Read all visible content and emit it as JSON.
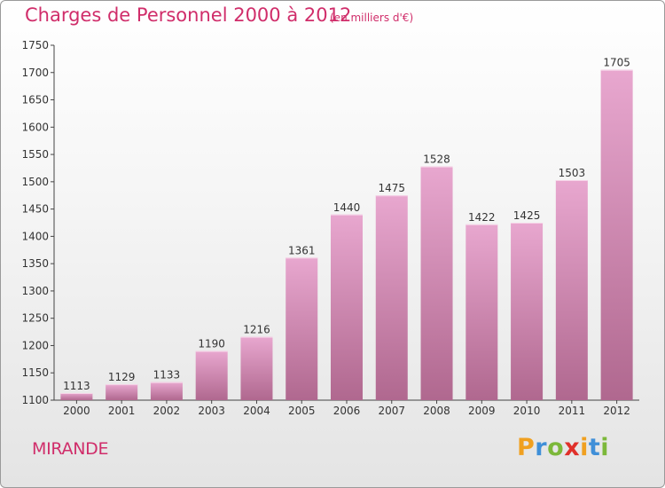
{
  "title": "Charges de Personnel 2000 à 2012",
  "subtitle": "(en milliers d'€)",
  "commune": "MIRANDE",
  "logo": {
    "letters": [
      "P",
      "r",
      "o",
      "x",
      "i",
      "t",
      "i"
    ],
    "colors": [
      "#f0a020",
      "#3f8fd8",
      "#7cb83a",
      "#e0302a",
      "#f0a020",
      "#3f8fd8",
      "#7cb83a"
    ]
  },
  "colors": {
    "accent": "#d02d6a",
    "bar_top": "#e8a7cf",
    "bar_bottom": "#b0688f",
    "bar_edge": "#f6d4e8"
  },
  "chart_data": {
    "type": "bar",
    "title": "Charges de Personnel 2000 à 2012",
    "subtitle": "(en milliers d'€)",
    "categories": [
      "2000",
      "2001",
      "2002",
      "2003",
      "2004",
      "2005",
      "2006",
      "2007",
      "2008",
      "2009",
      "2010",
      "2011",
      "2012"
    ],
    "values": [
      1113,
      1129,
      1133,
      1190,
      1216,
      1361,
      1440,
      1475,
      1528,
      1422,
      1425,
      1503,
      1705
    ],
    "ylim": [
      1100,
      1750
    ],
    "yticks": [
      1100,
      1150,
      1200,
      1250,
      1300,
      1350,
      1400,
      1450,
      1500,
      1550,
      1600,
      1650,
      1700,
      1750
    ],
    "xlabel": "",
    "ylabel": "",
    "grid": false,
    "legend": "none"
  }
}
